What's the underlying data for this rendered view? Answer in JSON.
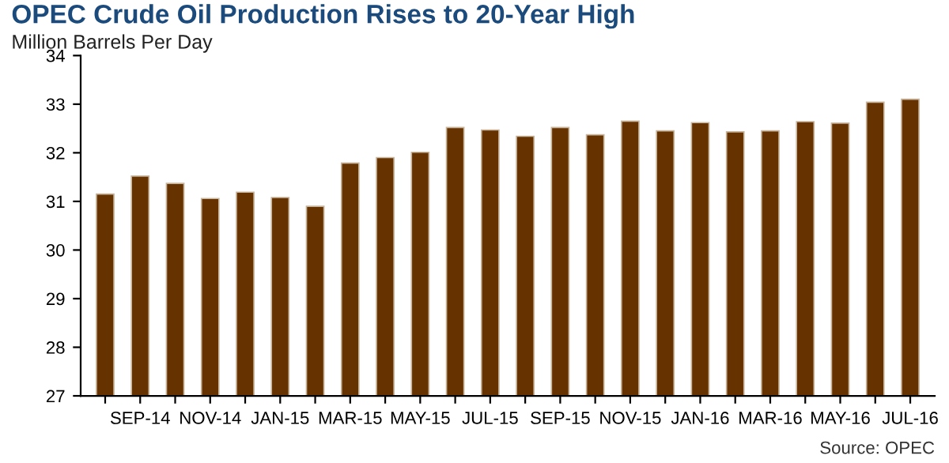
{
  "chart_data": {
    "type": "bar",
    "title": "OPEC Crude Oil Production Rises to 20-Year High",
    "subtitle": "Million Barrels Per Day",
    "categories": [
      null,
      "SEP-14",
      null,
      "NOV-14",
      null,
      "JAN-15",
      null,
      "MAR-15",
      null,
      "MAY-15",
      null,
      "JUL-15",
      null,
      "SEP-15",
      null,
      "NOV-15",
      null,
      "JAN-16",
      null,
      "MAR-16",
      null,
      "MAY-16",
      null,
      "JUL-16"
    ],
    "values": [
      31.15,
      31.52,
      31.37,
      31.06,
      31.19,
      31.08,
      30.9,
      31.79,
      31.9,
      32.01,
      32.52,
      32.47,
      32.34,
      32.52,
      32.37,
      32.65,
      32.45,
      32.62,
      32.43,
      32.45,
      32.64,
      32.61,
      33.04,
      33.1
    ],
    "color": "#663300",
    "ylim": [
      27,
      34
    ],
    "yticks": [
      27,
      28,
      29,
      30,
      31,
      32,
      33,
      34
    ],
    "grid": false,
    "annotations": [
      "Source: OPEC"
    ]
  }
}
